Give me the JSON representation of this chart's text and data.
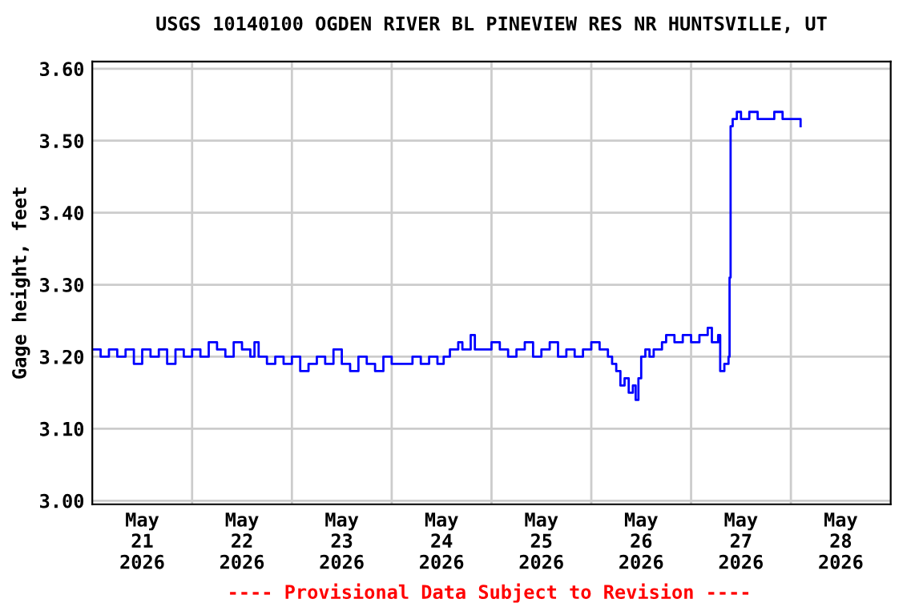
{
  "chart_data": {
    "type": "step",
    "title": "USGS 10140100 OGDEN RIVER BL PINEVIEW RES NR HUNTSVILLE, UT",
    "ylabel": "Gage height, feet",
    "annotations": [
      "---- Provisional Data Subject to Revision ----"
    ],
    "xlim": [
      "2026-05-21T00:00",
      "2026-05-29T00:00"
    ],
    "xticks": [
      {
        "value": "2026-05-21T12:00",
        "label": "May\n21\n2026"
      },
      {
        "value": "2026-05-22T12:00",
        "label": "May\n22\n2026"
      },
      {
        "value": "2026-05-23T12:00",
        "label": "May\n23\n2026"
      },
      {
        "value": "2026-05-24T12:00",
        "label": "May\n24\n2026"
      },
      {
        "value": "2026-05-25T12:00",
        "label": "May\n25\n2026"
      },
      {
        "value": "2026-05-26T12:00",
        "label": "May\n26\n2026"
      },
      {
        "value": "2026-05-27T12:00",
        "label": "May\n27\n2026"
      },
      {
        "value": "2026-05-28T12:00",
        "label": "May\n28\n2026"
      },
      {
        "value": "2026-05-22T00:00",
        "label": null
      },
      {
        "value": "2026-05-23T00:00",
        "label": null
      },
      {
        "value": "2026-05-24T00:00",
        "label": null
      },
      {
        "value": "2026-05-25T00:00",
        "label": null
      },
      {
        "value": "2026-05-26T00:00",
        "label": null
      },
      {
        "value": "2026-05-27T00:00",
        "label": null
      },
      {
        "value": "2026-05-28T00:00",
        "label": null
      }
    ],
    "ylim": [
      2.995,
      3.61
    ],
    "yticks": [
      {
        "value": 3.0,
        "label": "3.00"
      },
      {
        "value": 3.1,
        "label": "3.10"
      },
      {
        "value": 3.2,
        "label": "3.20"
      },
      {
        "value": 3.3,
        "label": "3.30"
      },
      {
        "value": 3.4,
        "label": "3.40"
      },
      {
        "value": 3.5,
        "label": "3.50"
      },
      {
        "value": 3.6,
        "label": "3.60"
      }
    ],
    "grid": true,
    "x": [
      "2026-05-21T00:00",
      "2026-05-21T02:00",
      "2026-05-21T04:00",
      "2026-05-21T06:00",
      "2026-05-21T08:00",
      "2026-05-21T10:00",
      "2026-05-21T12:00",
      "2026-05-21T14:00",
      "2026-05-21T16:00",
      "2026-05-21T18:00",
      "2026-05-21T20:00",
      "2026-05-21T22:00",
      "2026-05-22T00:00",
      "2026-05-22T02:00",
      "2026-05-22T04:00",
      "2026-05-22T06:00",
      "2026-05-22T08:00",
      "2026-05-22T10:00",
      "2026-05-22T12:00",
      "2026-05-22T14:00",
      "2026-05-22T15:00",
      "2026-05-22T16:00",
      "2026-05-22T18:00",
      "2026-05-22T20:00",
      "2026-05-22T22:00",
      "2026-05-23T00:00",
      "2026-05-23T02:00",
      "2026-05-23T04:00",
      "2026-05-23T06:00",
      "2026-05-23T08:00",
      "2026-05-23T10:00",
      "2026-05-23T12:00",
      "2026-05-23T14:00",
      "2026-05-23T16:00",
      "2026-05-23T18:00",
      "2026-05-23T20:00",
      "2026-05-23T22:00",
      "2026-05-24T00:00",
      "2026-05-24T03:00",
      "2026-05-24T05:00",
      "2026-05-24T07:00",
      "2026-05-24T09:00",
      "2026-05-24T11:00",
      "2026-05-24T12:30",
      "2026-05-24T14:00",
      "2026-05-24T16:00",
      "2026-05-24T17:00",
      "2026-05-24T19:00",
      "2026-05-24T20:00",
      "2026-05-24T22:00",
      "2026-05-25T00:00",
      "2026-05-25T02:00",
      "2026-05-25T04:00",
      "2026-05-25T06:00",
      "2026-05-25T08:00",
      "2026-05-25T10:00",
      "2026-05-25T12:00",
      "2026-05-25T14:00",
      "2026-05-25T16:00",
      "2026-05-25T18:00",
      "2026-05-25T20:00",
      "2026-05-25T22:00",
      "2026-05-26T00:00",
      "2026-05-26T02:00",
      "2026-05-26T04:00",
      "2026-05-26T05:00",
      "2026-05-26T06:00",
      "2026-05-26T07:00",
      "2026-05-26T08:00",
      "2026-05-26T09:00",
      "2026-05-26T10:00",
      "2026-05-26T10:40",
      "2026-05-26T11:20",
      "2026-05-26T12:00",
      "2026-05-26T13:00",
      "2026-05-26T14:00",
      "2026-05-26T15:00",
      "2026-05-26T17:00",
      "2026-05-26T18:00",
      "2026-05-26T20:00",
      "2026-05-26T22:00",
      "2026-05-27T00:00",
      "2026-05-27T02:00",
      "2026-05-27T04:00",
      "2026-05-27T05:00",
      "2026-05-27T06:30",
      "2026-05-27T07:00",
      "2026-05-27T08:00",
      "2026-05-27T09:00",
      "2026-05-27T09:15",
      "2026-05-27T09:30",
      "2026-05-27T10:00",
      "2026-05-27T11:00",
      "2026-05-27T12:00",
      "2026-05-27T14:00",
      "2026-05-27T16:00",
      "2026-05-27T18:00",
      "2026-05-27T20:00",
      "2026-05-27T22:00",
      "2026-05-28T00:00",
      "2026-05-28T01:00",
      "2026-05-28T02:20"
    ],
    "series": [
      {
        "color": "#0000ff",
        "values": [
          3.21,
          3.2,
          3.21,
          3.2,
          3.21,
          3.19,
          3.21,
          3.2,
          3.21,
          3.19,
          3.21,
          3.2,
          3.21,
          3.2,
          3.22,
          3.21,
          3.2,
          3.22,
          3.21,
          3.2,
          3.22,
          3.2,
          3.19,
          3.2,
          3.19,
          3.2,
          3.18,
          3.19,
          3.2,
          3.19,
          3.21,
          3.19,
          3.18,
          3.2,
          3.19,
          3.18,
          3.2,
          3.19,
          3.19,
          3.2,
          3.19,
          3.2,
          3.19,
          3.2,
          3.21,
          3.22,
          3.21,
          3.23,
          3.21,
          3.21,
          3.22,
          3.21,
          3.2,
          3.21,
          3.22,
          3.2,
          3.21,
          3.22,
          3.2,
          3.21,
          3.2,
          3.21,
          3.22,
          3.21,
          3.2,
          3.19,
          3.18,
          3.16,
          3.17,
          3.15,
          3.16,
          3.14,
          3.17,
          3.2,
          3.21,
          3.2,
          3.21,
          3.22,
          3.23,
          3.22,
          3.23,
          3.22,
          3.23,
          3.24,
          3.22,
          3.23,
          3.18,
          3.19,
          3.2,
          3.31,
          3.52,
          3.53,
          3.54,
          3.53,
          3.54,
          3.53,
          3.53,
          3.54,
          3.53,
          3.53,
          3.53,
          3.52
        ]
      }
    ]
  }
}
